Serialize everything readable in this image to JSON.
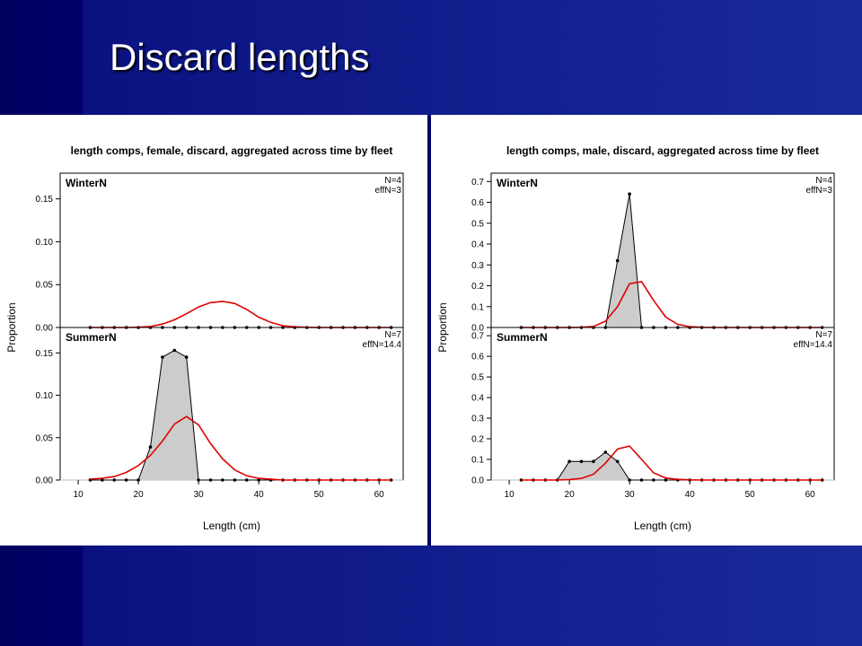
{
  "slide": {
    "title": "Discard lengths"
  },
  "chart_data": [
    {
      "type": "line",
      "title": "length comps, female, discard, aggregated across time by fleet",
      "xlabel": "Length (cm)",
      "ylabel": "Proportion",
      "xlim": [
        7,
        64
      ],
      "xticks": [
        10,
        20,
        30,
        40,
        50,
        60
      ],
      "ylim": [
        0,
        0.18
      ],
      "yticks": [
        "0.00",
        "0.05",
        "0.10",
        "0.15"
      ],
      "panels": [
        {
          "name": "WinterN",
          "n_label": "N=4",
          "effn_label": "effN=3",
          "x": [
            12,
            14,
            16,
            18,
            20,
            22,
            24,
            26,
            28,
            30,
            32,
            34,
            36,
            38,
            40,
            42,
            44,
            46,
            48,
            50,
            52,
            54,
            56,
            58,
            60,
            62
          ],
          "observed": [
            0,
            0,
            0,
            0,
            0,
            0,
            0,
            0,
            0,
            0,
            0,
            0,
            0,
            0,
            0,
            0,
            0,
            0,
            0,
            0,
            0,
            0,
            0,
            0,
            0,
            0
          ],
          "expected": [
            0,
            0,
            0,
            0,
            0.0003,
            0.0012,
            0.004,
            0.009,
            0.016,
            0.024,
            0.029,
            0.0305,
            0.028,
            0.021,
            0.012,
            0.006,
            0.002,
            0.0007,
            0.0002,
            0,
            0,
            0,
            0,
            0,
            0,
            0
          ]
        },
        {
          "name": "SummerN",
          "n_label": "N=7",
          "effn_label": "effN=14.4",
          "x": [
            12,
            14,
            16,
            18,
            20,
            22,
            24,
            26,
            28,
            30,
            32,
            34,
            36,
            38,
            40,
            42,
            44,
            46,
            48,
            50,
            52,
            54,
            56,
            58,
            60,
            62
          ],
          "observed": [
            0,
            0,
            0,
            0,
            0,
            0.039,
            0.145,
            0.153,
            0.145,
            0,
            0,
            0,
            0,
            0,
            0,
            0,
            0,
            0,
            0,
            0,
            0,
            0,
            0,
            0,
            0,
            0
          ],
          "expected": [
            0.001,
            0.002,
            0.004,
            0.009,
            0.017,
            0.029,
            0.046,
            0.066,
            0.075,
            0.065,
            0.043,
            0.025,
            0.012,
            0.005,
            0.002,
            0.001,
            0,
            0,
            0,
            0,
            0,
            0,
            0,
            0,
            0,
            0
          ]
        }
      ]
    },
    {
      "type": "line",
      "title": "length comps, male, discard, aggregated across time by fleet",
      "xlabel": "Length (cm)",
      "ylabel": "Proportion",
      "xlim": [
        7,
        64
      ],
      "xticks": [
        10,
        20,
        30,
        40,
        50,
        60
      ],
      "ylim": [
        0,
        0.74
      ],
      "yticks": [
        "0.0",
        "0.1",
        "0.2",
        "0.3",
        "0.4",
        "0.5",
        "0.6",
        "0.7"
      ],
      "panels": [
        {
          "name": "WinterN",
          "n_label": "N=4",
          "effn_label": "effN=3",
          "x": [
            12,
            14,
            16,
            18,
            20,
            22,
            24,
            26,
            28,
            30,
            32,
            34,
            36,
            38,
            40,
            42,
            44,
            46,
            48,
            50,
            52,
            54,
            56,
            58,
            60,
            62
          ],
          "observed": [
            0,
            0,
            0,
            0,
            0,
            0,
            0,
            0,
            0.32,
            0.64,
            0,
            0,
            0,
            0,
            0,
            0,
            0,
            0,
            0,
            0,
            0,
            0,
            0,
            0,
            0,
            0
          ],
          "expected": [
            0,
            0,
            0,
            0,
            0,
            0.001,
            0.005,
            0.03,
            0.1,
            0.21,
            0.22,
            0.13,
            0.05,
            0.015,
            0.004,
            0.001,
            0,
            0,
            0,
            0,
            0,
            0,
            0,
            0,
            0,
            0
          ]
        },
        {
          "name": "SummerN",
          "n_label": "N=7",
          "effn_label": "effN=14.4",
          "x": [
            12,
            14,
            16,
            18,
            20,
            22,
            24,
            26,
            28,
            30,
            32,
            34,
            36,
            38,
            40,
            42,
            44,
            46,
            48,
            50,
            52,
            54,
            56,
            58,
            60,
            62
          ],
          "observed": [
            0,
            0,
            0,
            0,
            0.09,
            0.09,
            0.09,
            0.135,
            0.09,
            0,
            0,
            0,
            0,
            0,
            0,
            0,
            0,
            0,
            0,
            0,
            0,
            0,
            0,
            0,
            0,
            0
          ],
          "expected": [
            0,
            0,
            0,
            0,
            0.002,
            0.008,
            0.028,
            0.082,
            0.15,
            0.165,
            0.1,
            0.035,
            0.01,
            0.003,
            0.001,
            0,
            0,
            0,
            0,
            0,
            0,
            0,
            0,
            0,
            0,
            0
          ]
        }
      ]
    }
  ],
  "colors": {
    "observed_fill": "#cccccc",
    "observed_line": "#000000",
    "expected_line": "#e00000",
    "background": "#ffffff"
  }
}
